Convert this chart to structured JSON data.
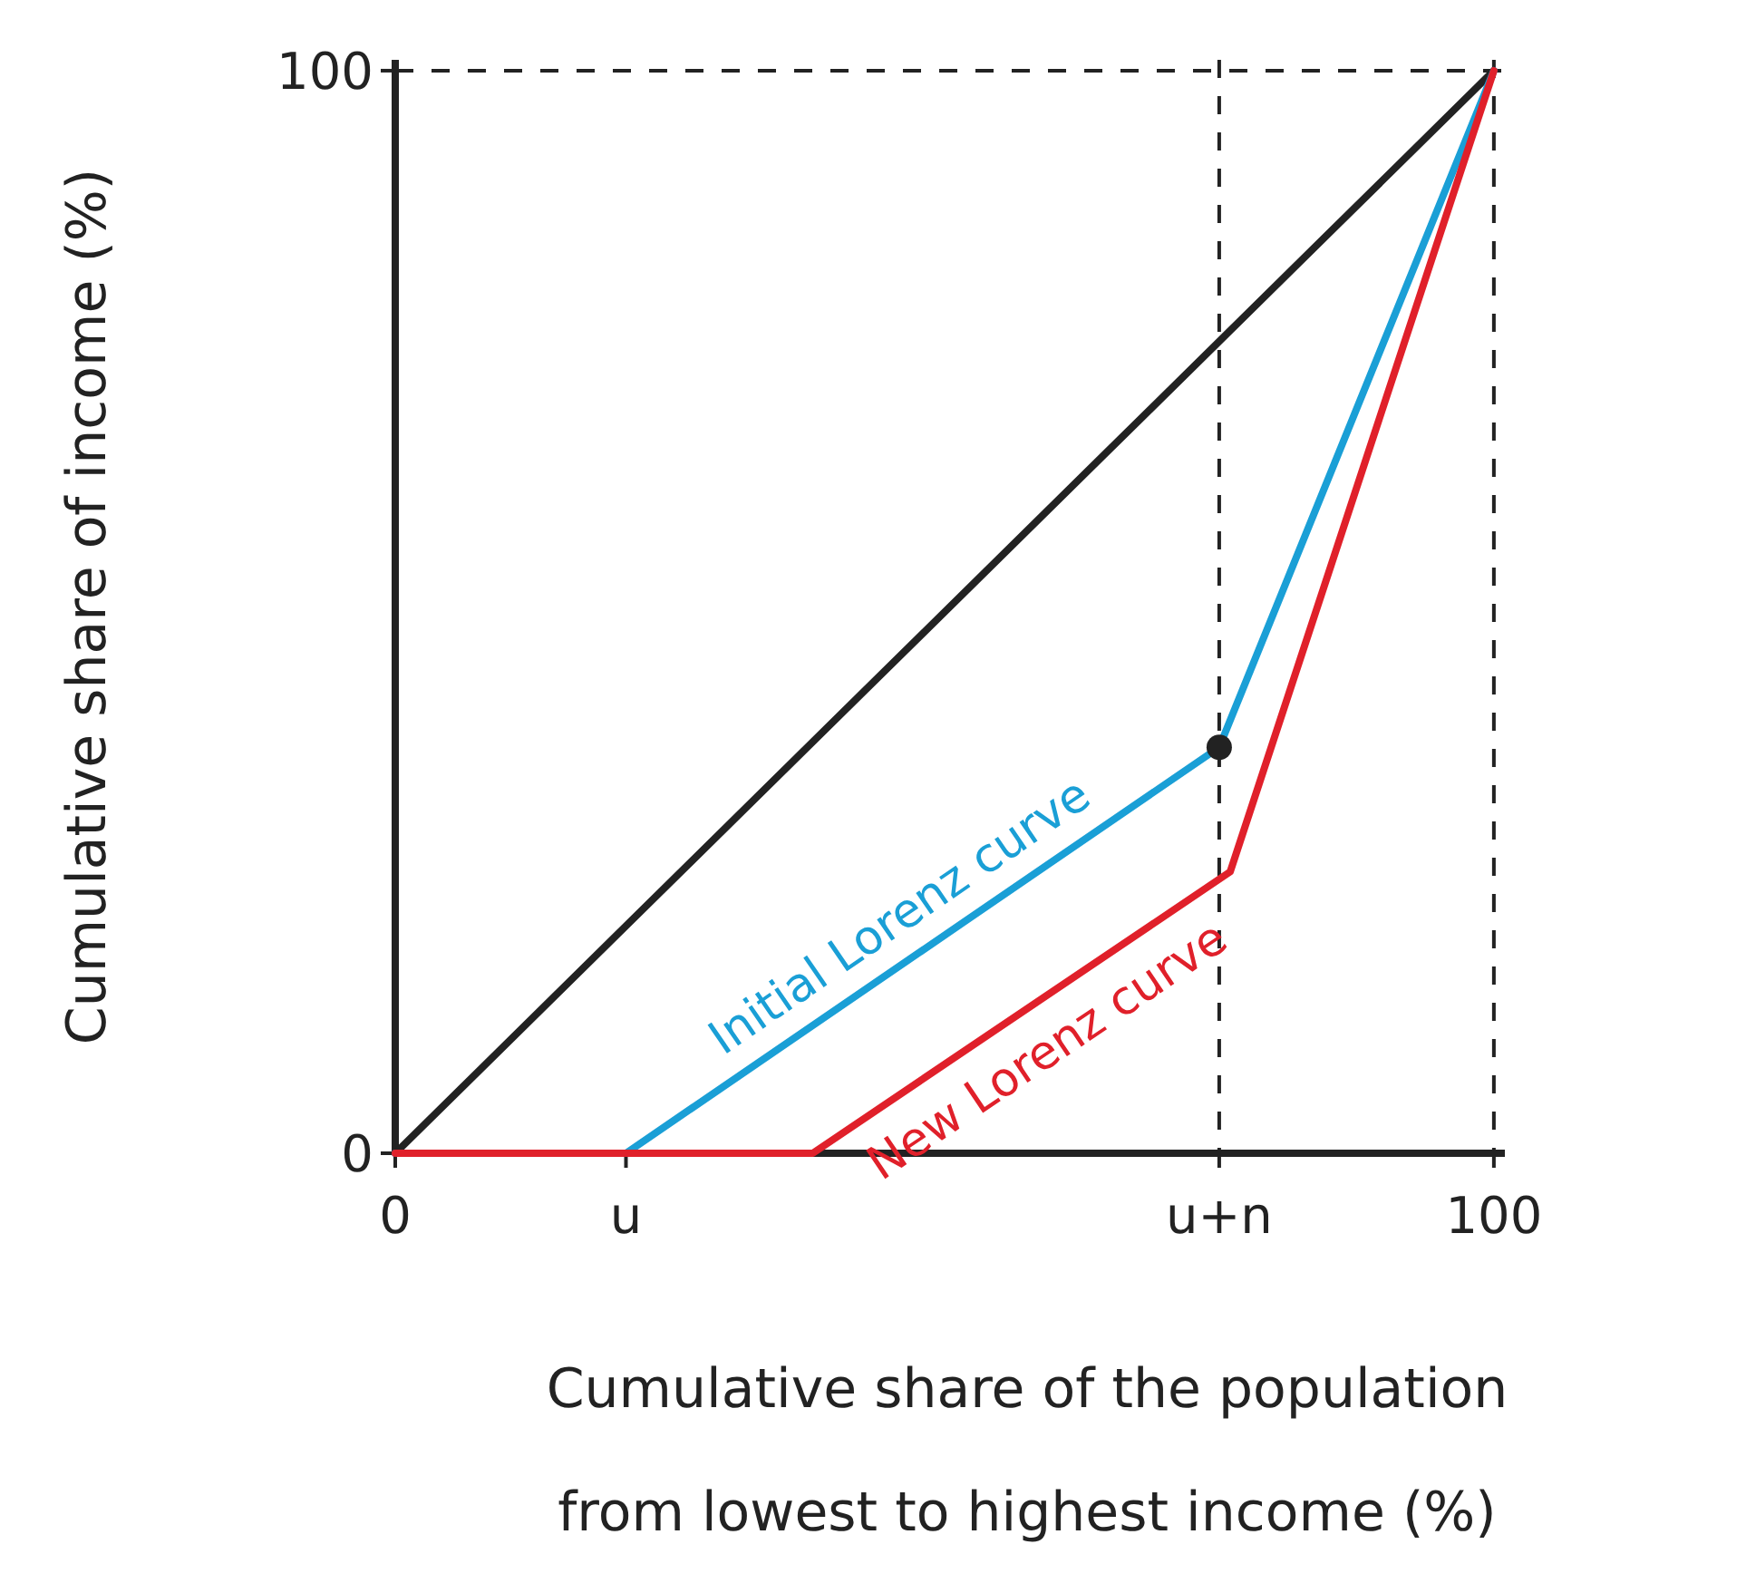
{
  "chart_data": {
    "type": "line",
    "xlabel": "Cumulative share of the population from lowest to highest income (%)",
    "ylabel": "Cumulative share of income (%)",
    "xlim": [
      0,
      101
    ],
    "ylim": [
      0,
      101
    ],
    "xticks": [
      0,
      {
        "value": 21,
        "label": "u"
      },
      {
        "value": 75,
        "label": "u+n"
      },
      100
    ],
    "yticks": [
      0,
      100
    ],
    "grid": false,
    "line_style": "solid",
    "marker": "none",
    "series": [
      {
        "color": "#222222",
        "x": [
          0,
          100
        ],
        "values": [
          0,
          100
        ]
      },
      {
        "name": "Initial Lorenz curve",
        "color": "#1a9fd6",
        "x": [
          0,
          21,
          75,
          100
        ],
        "values": [
          0,
          0,
          37.5,
          100
        ]
      },
      {
        "name": "New Lorenz curve",
        "color": "#e0202a",
        "x": [
          0,
          38,
          76,
          100
        ],
        "values": [
          0,
          0,
          26,
          100
        ]
      },
      {
        "type": "scatter",
        "marker": "circle",
        "color": "#222222",
        "x": [
          75
        ],
        "values": [
          37.5
        ]
      }
    ],
    "ref_lines": [
      {
        "axis": "y",
        "value": 100,
        "color": "#222222",
        "line_style": "dashed"
      },
      {
        "axis": "x",
        "value": 100,
        "color": "#222222",
        "line_style": "dashed"
      },
      {
        "axis": "x",
        "value": 75,
        "color": "#222222",
        "line_style": "dashed"
      }
    ]
  }
}
